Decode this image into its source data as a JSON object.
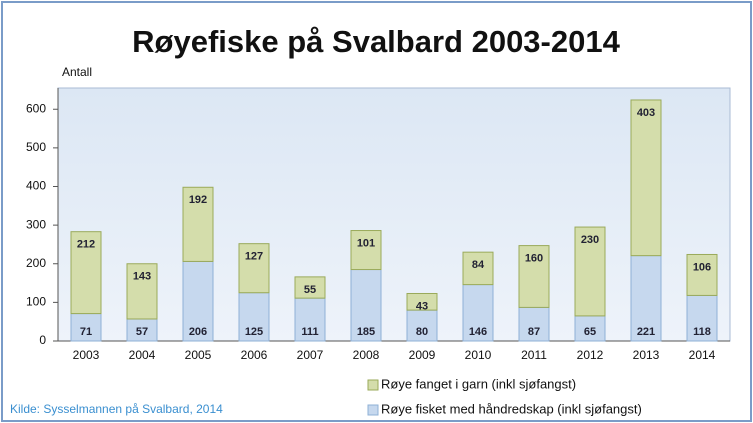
{
  "chart_data": {
    "type": "stacked_bar",
    "title": "Røyefiske på Svalbard 2003-2014",
    "y_label": "Antall",
    "source": "Kilde: Sysselmannen på Svalbard, 2014",
    "categories": [
      "2003",
      "2004",
      "2005",
      "2006",
      "2007",
      "2008",
      "2009",
      "2010",
      "2011",
      "2012",
      "2013",
      "2014"
    ],
    "series": [
      {
        "name": "Røye fisket med håndredskap (inkl sjøfangst)",
        "color": "#c6d8ee",
        "values": [
          71,
          57,
          206,
          125,
          111,
          185,
          80,
          146,
          87,
          65,
          221,
          118
        ]
      },
      {
        "name": "Røye fanget i garn (inkl sjøfangst)",
        "color": "#d4ddab",
        "values": [
          212,
          143,
          192,
          127,
          55,
          101,
          43,
          84,
          160,
          230,
          403,
          106
        ]
      }
    ],
    "ylim": [
      0,
      655
    ],
    "yticks": [
      0,
      100,
      200,
      300,
      400,
      500,
      600
    ],
    "grid": false
  }
}
